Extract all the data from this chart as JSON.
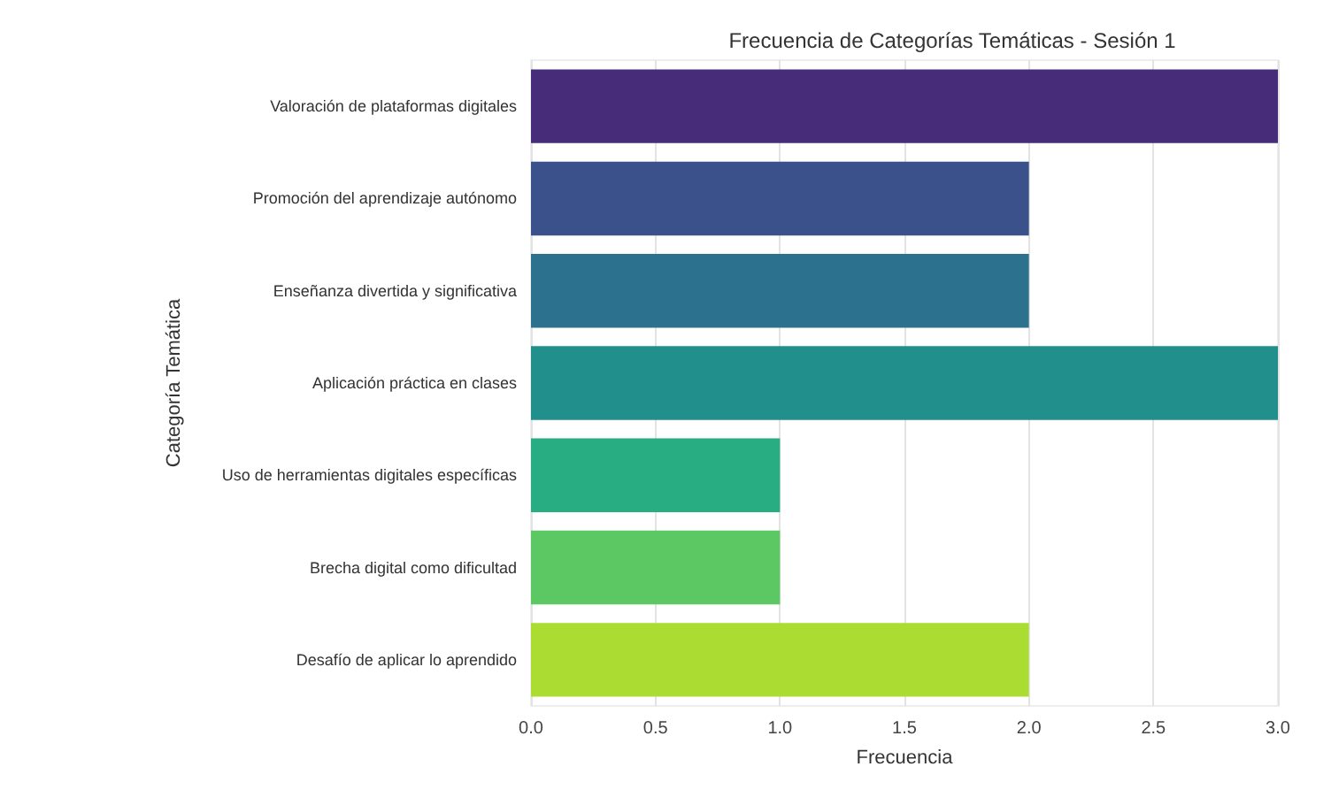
{
  "chart_data": {
    "type": "bar",
    "orientation": "horizontal",
    "title": "Frecuencia de Categorías Temáticas - Sesión 1",
    "xlabel": "Frecuencia",
    "ylabel": "Categoría Temática",
    "categories": [
      "Valoración de plataformas digitales",
      "Promoción del aprendizaje autónomo",
      "Enseñanza divertida y significativa",
      "Aplicación práctica en clases",
      "Uso de herramientas digitales específicas",
      "Brecha digital como dificultad",
      "Desafío de aplicar lo aprendido"
    ],
    "values": [
      3,
      2,
      2,
      3,
      1,
      1,
      2
    ],
    "colors": [
      "#472c7a",
      "#3b518b",
      "#2c718e",
      "#21908d",
      "#27ad81",
      "#5cc863",
      "#aadc32"
    ],
    "xlim": [
      0,
      3
    ],
    "xticks": [
      {
        "value": 0,
        "label": "0.0"
      },
      {
        "value": 0.5,
        "label": "0.5"
      },
      {
        "value": 1,
        "label": "1.0"
      },
      {
        "value": 1.5,
        "label": "1.5"
      },
      {
        "value": 2,
        "label": "2.0"
      },
      {
        "value": 2.5,
        "label": "2.5"
      },
      {
        "value": 3,
        "label": "3.0"
      }
    ],
    "grid": "x"
  }
}
